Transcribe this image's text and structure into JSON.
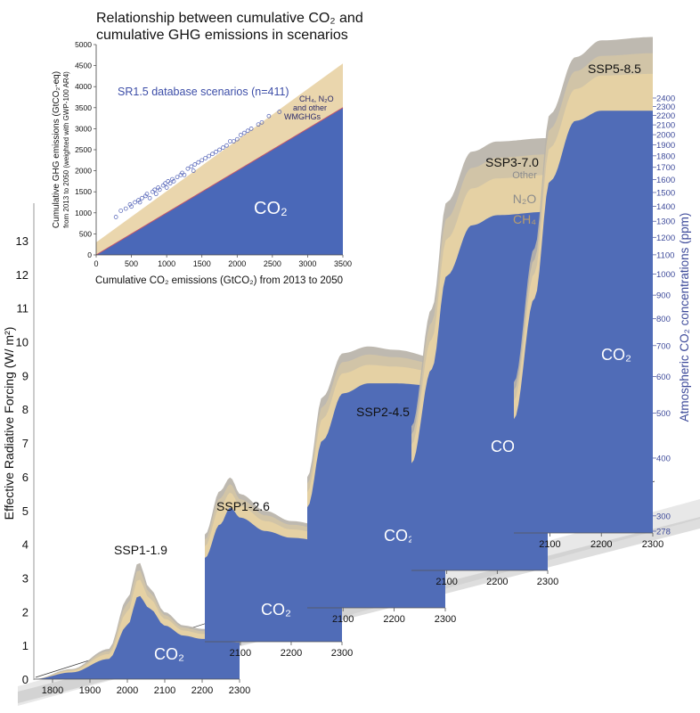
{
  "colors": {
    "co2": "#4a68b8",
    "ch4": "#e6d1a4",
    "n2o": "#d2c4a6",
    "other": "#b9b3a9",
    "inset_bg": "#ead6ad",
    "inset_line": "#c4566a",
    "band": "#d5d5d5",
    "right_axis_text": "#3d4a9a"
  },
  "chart_data": [
    {
      "type": "area",
      "ylabel": "Effective Radiative Forcing (W/ m²)",
      "right_axis_label": "Atmospheric CO₂ concentrations (ppm)",
      "y_ticks": [
        "0",
        "1",
        "2",
        "3",
        "4",
        "5",
        "6",
        "7",
        "8",
        "9",
        "10",
        "11",
        "12",
        "13"
      ],
      "right_axis_ticks": [
        "278",
        "300",
        "400",
        "500",
        "600",
        "700",
        "800",
        "900",
        "1000",
        "1100",
        "1200",
        "1300",
        "1400",
        "1500",
        "1600",
        "1700",
        "1800",
        "1900",
        "2000",
        "2100",
        "2200",
        "2300",
        "2400"
      ],
      "x_ticks_first": [
        "1800",
        "1900",
        "2000",
        "2100",
        "2200",
        "2300"
      ],
      "x_ticks": [
        "2100",
        "2200",
        "2300"
      ],
      "area_labels": {
        "co2": "CO₂",
        "ch4": "CH₄",
        "n2o": "N₂O",
        "other": "Other"
      },
      "scenarios": [
        {
          "name": "SSP1-1.9",
          "x": [
            1750,
            1850,
            1950,
            2000,
            2030,
            2060,
            2100,
            2150,
            2200,
            2300
          ],
          "co2": [
            0,
            0.2,
            0.6,
            1.6,
            2.5,
            2.1,
            1.6,
            1.3,
            1.2,
            1.1
          ],
          "total": [
            0,
            0.3,
            0.9,
            2.4,
            3.5,
            2.7,
            2.0,
            1.6,
            1.5,
            1.3
          ]
        },
        {
          "name": "SSP1-2.6",
          "x": [
            2030,
            2060,
            2080,
            2100,
            2150,
            2200,
            2300
          ],
          "co2": [
            2.5,
            3.5,
            4.0,
            3.7,
            3.3,
            3.1,
            2.9
          ],
          "total": [
            3.2,
            4.5,
            4.9,
            4.4,
            3.9,
            3.6,
            3.3
          ]
        },
        {
          "name": "SSP2-4.5",
          "x": [
            2030,
            2060,
            2100,
            2150,
            2200,
            2300
          ],
          "co2": [
            3.0,
            5.0,
            6.4,
            6.7,
            6.7,
            6.6
          ],
          "total": [
            3.9,
            6.3,
            7.6,
            7.8,
            7.7,
            7.4
          ]
        },
        {
          "name": "SSP3-7.0",
          "x": [
            2030,
            2070,
            2100,
            2150,
            2200,
            2300
          ],
          "co2": [
            3.2,
            6.0,
            8.8,
            10.3,
            10.6,
            10.7
          ],
          "total": [
            4.3,
            7.8,
            11.0,
            12.5,
            12.8,
            12.9
          ]
        },
        {
          "name": "SSP5-8.5",
          "x": [
            2030,
            2070,
            2100,
            2150,
            2200,
            2300
          ],
          "co2": [
            3.4,
            7.0,
            10.5,
            12.3,
            12.6,
            12.6
          ],
          "total": [
            4.5,
            8.5,
            12.5,
            14.2,
            14.7,
            14.8
          ]
        }
      ]
    },
    {
      "type": "scatter",
      "title": "Relationship between cumulative CO₂ and cumulative GHG emissions in scenarios",
      "title_line1": "Relationship between cumulative CO₂ and",
      "title_line2": "cumulative GHG emissions in scenarios",
      "xlabel": "Cumulative CO₂ emissions (GtCO₂) from 2013 to 2050",
      "ylabel_line1": "Cumulative GHG emissions (GtCO₂-eq)",
      "ylabel_line2": "from 2013 to 2050 (weighted with GWP-100 AR4)",
      "series_label": "SR1.5 database scenarios (n=411)",
      "other_label_1": "CH₄, N₂O",
      "other_label_2": "and other",
      "other_label_3": "WMGHGs",
      "co2_label": "CO₂",
      "xlim": [
        0,
        3500
      ],
      "ylim": [
        0,
        5000
      ],
      "x_ticks": [
        "0",
        "500",
        "1000",
        "1500",
        "2000",
        "2500",
        "3000",
        "3500"
      ],
      "y_ticks": [
        "0",
        "500",
        "1000",
        "1500",
        "2000",
        "2500",
        "3000",
        "3500",
        "4000",
        "4500",
        "5000"
      ],
      "upper_band": {
        "x": [
          0,
          3500
        ],
        "y": [
          300,
          4550
        ]
      },
      "points": {
        "x": [
          280,
          350,
          420,
          480,
          500,
          550,
          600,
          620,
          650,
          700,
          720,
          760,
          800,
          830,
          850,
          880,
          900,
          950,
          980,
          1000,
          1020,
          1050,
          1080,
          1100,
          1150,
          1200,
          1220,
          1250,
          1300,
          1350,
          1380,
          1400,
          1450,
          1500,
          1550,
          1600,
          1650,
          1700,
          1750,
          1800,
          1850,
          1900,
          1950,
          2000,
          2050,
          2100,
          2150,
          2200,
          2300,
          2350,
          2450,
          2600
        ],
        "y": [
          900,
          1050,
          1100,
          1200,
          1150,
          1250,
          1300,
          1250,
          1350,
          1400,
          1450,
          1350,
          1500,
          1550,
          1450,
          1600,
          1550,
          1650,
          1700,
          1600,
          1750,
          1700,
          1800,
          1750,
          1850,
          1900,
          1950,
          1900,
          2050,
          2100,
          2000,
          2150,
          2200,
          2250,
          2300,
          2350,
          2400,
          2450,
          2500,
          2550,
          2600,
          2700,
          2700,
          2750,
          2850,
          2900,
          2950,
          3000,
          3100,
          3150,
          3300,
          3400
        ]
      }
    }
  ]
}
